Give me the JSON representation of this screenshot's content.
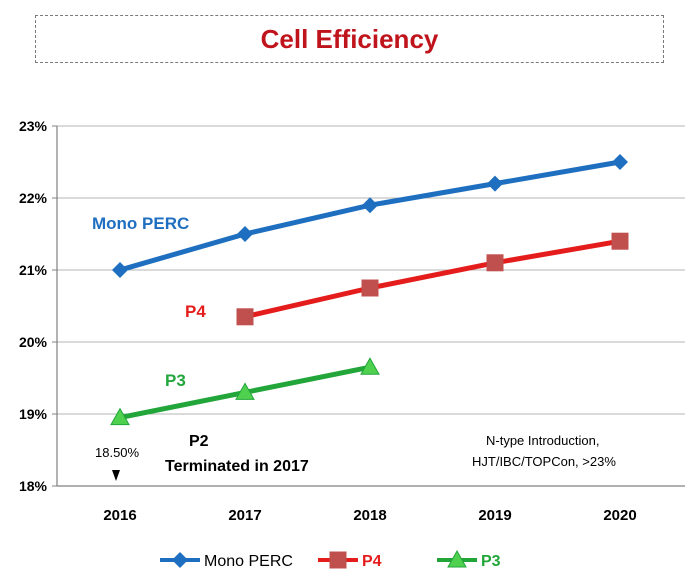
{
  "chart_data": {
    "type": "line",
    "title": "Cell Efficiency",
    "xlabel": "",
    "ylabel": "",
    "categories": [
      "2016",
      "2017",
      "2018",
      "2019",
      "2020"
    ],
    "yticks": [
      "18%",
      "19%",
      "20%",
      "21%",
      "22%",
      "23%"
    ],
    "ylim": [
      18,
      23
    ],
    "grid": true,
    "legend_position": "bottom",
    "series": [
      {
        "name": "Mono PERC",
        "color": "#1f6fc0",
        "marker": "diamond",
        "values": [
          21.0,
          21.5,
          21.9,
          22.2,
          22.5
        ]
      },
      {
        "name": "P4",
        "color": "#e51c1c",
        "marker": "square",
        "values": [
          null,
          20.35,
          20.75,
          21.1,
          21.4
        ]
      },
      {
        "name": "P3",
        "color": "#22a63a",
        "marker": "triangle",
        "values": [
          18.95,
          19.3,
          19.65,
          null,
          null
        ]
      }
    ],
    "annotations": {
      "mono_label": "Mono PERC",
      "p4_label": "P4",
      "p3_label": "P3",
      "value_label": "18.50%",
      "p2_line1": "P2",
      "p2_line2": "Terminated in 2017",
      "ntype_line1": "N-type Introduction,",
      "ntype_line2": "HJT/IBC/TOPCon, >23%"
    }
  }
}
